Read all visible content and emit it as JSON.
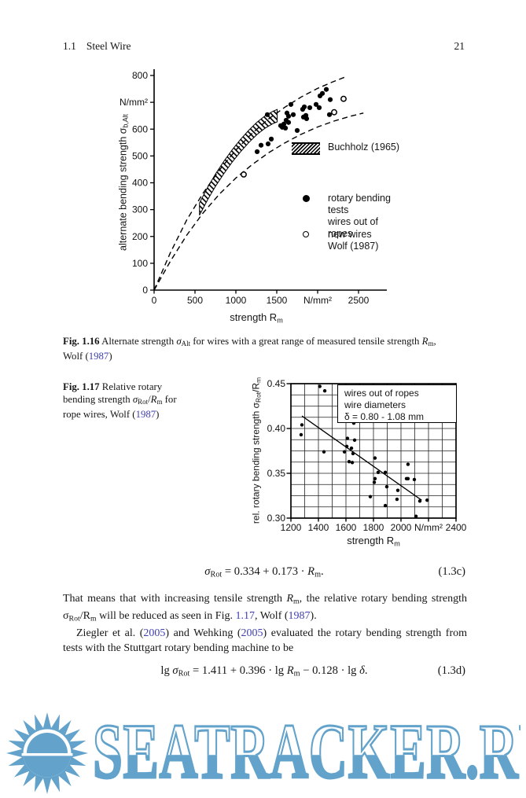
{
  "page": {
    "section": "1.1",
    "section_title": "Steel Wire",
    "page_number": "21"
  },
  "colors": {
    "link": "#3f3fb0",
    "ink": "#161616",
    "watermark_blue": "#63a3cb"
  },
  "fig116": {
    "legend": {
      "buchholz": "Buchholz (1965)",
      "filled_line1": "rotary bending tests",
      "filled_line2": "wires out of ropes",
      "open_line1": "new wires",
      "open_line2": "Wolf (1987)"
    },
    "xlabel": [
      {
        "t": "strength R"
      },
      {
        "t": "m",
        "s": "sub"
      }
    ],
    "ylabel": [
      {
        "t": "alternate bending strength σ"
      },
      {
        "t": "b,Alt",
        "s": "sub"
      }
    ],
    "caption_line1": [
      {
        "t": "Fig. 1.16",
        "s": "b"
      },
      {
        "t": "  Alternate strength "
      },
      {
        "t": "σ",
        "s": "i"
      },
      {
        "t": "Alt",
        "s": "sub"
      },
      {
        "t": " for wires with a great range of measured tensile strength "
      },
      {
        "t": "R",
        "s": "i"
      },
      {
        "t": "m",
        "s": "sub"
      },
      {
        "t": ","
      }
    ],
    "caption_line2": [
      {
        "t": "Wolf ("
      },
      {
        "t": "1987",
        "s": "link"
      },
      {
        "t": ")"
      }
    ]
  },
  "fig117": {
    "caption_line1": [
      {
        "t": "Fig. 1.17",
        "s": "b"
      },
      {
        "t": "  Relative rotary"
      }
    ],
    "caption_line2": [
      {
        "t": "bending strength "
      },
      {
        "t": "σ",
        "s": "i"
      },
      {
        "t": "Rot",
        "s": "sub"
      },
      {
        "t": "/"
      },
      {
        "t": "R",
        "s": "i"
      },
      {
        "t": "m",
        "s": "sub"
      },
      {
        "t": " for"
      }
    ],
    "caption_line3": [
      {
        "t": "rope wires, Wolf ("
      },
      {
        "t": "1987",
        "s": "link"
      },
      {
        "t": ")"
      }
    ],
    "xlabel": [
      {
        "t": "strength R"
      },
      {
        "t": "m",
        "s": "sub"
      }
    ],
    "ylabel": [
      {
        "t": "rel. rotary bending strength σ"
      },
      {
        "t": "Rot",
        "s": "sub"
      },
      {
        "t": "/R"
      },
      {
        "t": "m",
        "s": "sub"
      }
    ],
    "inset_line1": "wires out of ropes",
    "inset_line2": "wire diameters",
    "inset_line3": "δ = 0.80 - 1.08 mm"
  },
  "equations": {
    "c": {
      "body": [
        {
          "t": "σ",
          "s": "i"
        },
        {
          "t": "Rot",
          "s": "sub"
        },
        {
          "t": " = 0.334 + 0.173 · "
        },
        {
          "t": "R",
          "s": "i"
        },
        {
          "t": "m",
          "s": "sub"
        },
        {
          "t": "."
        }
      ],
      "number": "(1.3c)"
    },
    "d": {
      "body": [
        {
          "t": "lg "
        },
        {
          "t": "σ",
          "s": "i"
        },
        {
          "t": "Rot",
          "s": "sub"
        },
        {
          "t": " = 1.411 + 0.396 · lg "
        },
        {
          "t": "R",
          "s": "i"
        },
        {
          "t": "m",
          "s": "sub"
        },
        {
          "t": " − 0.128 · lg "
        },
        {
          "t": "δ",
          "s": "i"
        },
        {
          "t": "."
        }
      ],
      "number": "(1.3d)"
    }
  },
  "paragraphs": {
    "p1": [
      {
        "t": "That means that with increasing tensile strength "
      },
      {
        "t": "R",
        "s": "i"
      },
      {
        "t": "m",
        "s": "sub"
      },
      {
        "t": ", the relative rotary bending strength σ"
      },
      {
        "t": "Rot",
        "s": "sub"
      },
      {
        "t": "/R"
      },
      {
        "t": "m",
        "s": "sub"
      },
      {
        "t": " will be reduced as seen in Fig. "
      },
      {
        "t": "1.17",
        "s": "link"
      },
      {
        "t": ", Wolf ("
      },
      {
        "t": "1987",
        "s": "link"
      },
      {
        "t": ")."
      }
    ],
    "p2": [
      {
        "t": "Ziegler et al. ("
      },
      {
        "t": "2005",
        "s": "link"
      },
      {
        "t": ") and Wehking ("
      },
      {
        "t": "2005",
        "s": "link"
      },
      {
        "t": ") evaluated the rotary bending strength from tests with the Stuttgart rotary bending machine to be"
      }
    ]
  },
  "watermark": {
    "text": "SEATRACKER.RU"
  },
  "chart_data": [
    {
      "type": "scatter",
      "title": "Fig. 1.16 Alternate strength σAlt for wires with a great range of measured tensile strength Rm, Wolf (1987)",
      "xlabel": "strength Rm",
      "ylabel": "alternate bending strength σb,Alt",
      "x_unit": "N/mm²",
      "y_unit": "N/mm²",
      "xlim": [
        0,
        2800
      ],
      "ylim": [
        0,
        820
      ],
      "grid": false,
      "legend_position": "right-middle",
      "x_ticks": [
        {
          "v": 0,
          "label": "0"
        },
        {
          "v": 500,
          "label": "500"
        },
        {
          "v": 1000,
          "label": "1000"
        },
        {
          "v": 1500,
          "label": "1500"
        },
        {
          "v": 2000,
          "label": "N/mm²"
        },
        {
          "v": 2500,
          "label": "2500"
        }
      ],
      "y_ticks": [
        {
          "v": 0,
          "label": "0"
        },
        {
          "v": 100,
          "label": "100"
        },
        {
          "v": 200,
          "label": "200"
        },
        {
          "v": 300,
          "label": "300"
        },
        {
          "v": 400,
          "label": "400"
        },
        {
          "v": 500,
          "label": "500"
        },
        {
          "v": 600,
          "label": "600"
        },
        {
          "v": 700,
          "label": "N/mm²"
        },
        {
          "v": 800,
          "label": "800"
        }
      ],
      "series": [
        {
          "name": "rotary bending tests wires out of ropes",
          "marker": "filled-circle",
          "points": [
            [
              1260,
              516
            ],
            [
              1308,
              540
            ],
            [
              1385,
              654
            ],
            [
              1394,
              545
            ],
            [
              1433,
              563
            ],
            [
              1548,
              613
            ],
            [
              1567,
              607
            ],
            [
              1587,
              619
            ],
            [
              1606,
              604
            ],
            [
              1615,
              633
            ],
            [
              1625,
              660
            ],
            [
              1644,
              625
            ],
            [
              1644,
              648
            ],
            [
              1673,
              692
            ],
            [
              1702,
              654
            ],
            [
              1750,
              595
            ],
            [
              1817,
              674
            ],
            [
              1827,
              645
            ],
            [
              1837,
              683
            ],
            [
              1856,
              651
            ],
            [
              1865,
              639
            ],
            [
              1904,
              680
            ],
            [
              1981,
              692
            ],
            [
              2019,
              680
            ],
            [
              2029,
              724
            ],
            [
              2058,
              733
            ],
            [
              2106,
              748
            ],
            [
              2144,
              654
            ],
            [
              2154,
              710
            ]
          ]
        },
        {
          "name": "new wires Wolf (1987)",
          "marker": "open-circle",
          "points": [
            [
              1096,
              431
            ],
            [
              2202,
              663
            ],
            [
              2317,
              713
            ]
          ]
        },
        {
          "name": "Buchholz (1965)",
          "marker": "hatched-band",
          "band_center": [
            [
              555,
              302
            ],
            [
              655,
              360
            ],
            [
              755,
              412
            ],
            [
              855,
              458
            ],
            [
              955,
              500
            ],
            [
              1055,
              538
            ],
            [
              1155,
              572
            ],
            [
              1255,
              602
            ],
            [
              1355,
              626
            ],
            [
              1455,
              644
            ],
            [
              1505,
              650
            ]
          ],
          "band_half_width": 23
        }
      ],
      "envelope_curves": {
        "upper": [
          [
            0,
            0
          ],
          [
            200,
            140
          ],
          [
            400,
            262
          ],
          [
            600,
            362
          ],
          [
            800,
            448
          ],
          [
            1000,
            522
          ],
          [
            1200,
            585
          ],
          [
            1400,
            638
          ],
          [
            1600,
            682
          ],
          [
            1800,
            720
          ],
          [
            2000,
            752
          ],
          [
            2200,
            778
          ],
          [
            2350,
            796
          ]
        ],
        "lower": [
          [
            0,
            0
          ],
          [
            200,
            108
          ],
          [
            400,
            205
          ],
          [
            600,
            288
          ],
          [
            800,
            358
          ],
          [
            1000,
            418
          ],
          [
            1200,
            468
          ],
          [
            1400,
            512
          ],
          [
            1600,
            549
          ],
          [
            1800,
            581
          ],
          [
            2000,
            608
          ],
          [
            2200,
            630
          ],
          [
            2400,
            648
          ],
          [
            2560,
            660
          ]
        ]
      }
    },
    {
      "type": "scatter",
      "title": "Fig. 1.17 Relative rotary bending strength σRot/Rm for rope wires, Wolf (1987)",
      "xlabel": "strength Rm",
      "ylabel": "rel. rotary bending strength σRot/Rm",
      "x_unit": "N/mm²",
      "xlim": [
        1200,
        2400
      ],
      "ylim": [
        0.3,
        0.45
      ],
      "grid": true,
      "grid_x_step": 100,
      "grid_y_step": 0.0125,
      "x_ticks": [
        {
          "v": 1200,
          "label": "1200"
        },
        {
          "v": 1400,
          "label": "1400"
        },
        {
          "v": 1600,
          "label": "1600"
        },
        {
          "v": 1800,
          "label": "1800"
        },
        {
          "v": 2000,
          "label": "2000"
        },
        {
          "v": 2200,
          "label": "N/mm²"
        },
        {
          "v": 2400,
          "label": "2400"
        }
      ],
      "y_ticks": [
        {
          "v": 0.45,
          "label": "0.45"
        },
        {
          "v": 0.4,
          "label": "0.40"
        },
        {
          "v": 0.35,
          "label": "0.35"
        },
        {
          "v": 0.3,
          "label": "0.30"
        }
      ],
      "annotation_box": [
        "wires out of ropes",
        "wire diameters",
        "δ = 0.80 - 1.08 mm"
      ],
      "trend_line": {
        "x1": 1280,
        "y1": 0.414,
        "x2": 2150,
        "y2": 0.32
      },
      "series": [
        {
          "name": "wires out of ropes",
          "marker": "filled-circle",
          "points": [
            [
              1274,
              0.393
            ],
            [
              1280,
              0.404
            ],
            [
              1410,
              0.447
            ],
            [
              1440,
              0.374
            ],
            [
              1446,
              0.442
            ],
            [
              1589,
              0.374
            ],
            [
              1606,
              0.38
            ],
            [
              1611,
              0.389
            ],
            [
              1623,
              0.363
            ],
            [
              1640,
              0.378
            ],
            [
              1646,
              0.362
            ],
            [
              1651,
              0.372
            ],
            [
              1657,
              0.406
            ],
            [
              1663,
              0.387
            ],
            [
              1777,
              0.324
            ],
            [
              1806,
              0.34
            ],
            [
              1811,
              0.367
            ],
            [
              1811,
              0.344
            ],
            [
              1834,
              0.351
            ],
            [
              1886,
              0.351
            ],
            [
              1886,
              0.314
            ],
            [
              1897,
              0.335
            ],
            [
              1971,
              0.321
            ],
            [
              1977,
              0.331
            ],
            [
              2040,
              0.344
            ],
            [
              2051,
              0.344
            ],
            [
              2051,
              0.36
            ],
            [
              2097,
              0.343
            ],
            [
              2109,
              0.302
            ],
            [
              2137,
              0.319
            ],
            [
              2190,
              0.32
            ]
          ]
        }
      ]
    }
  ]
}
